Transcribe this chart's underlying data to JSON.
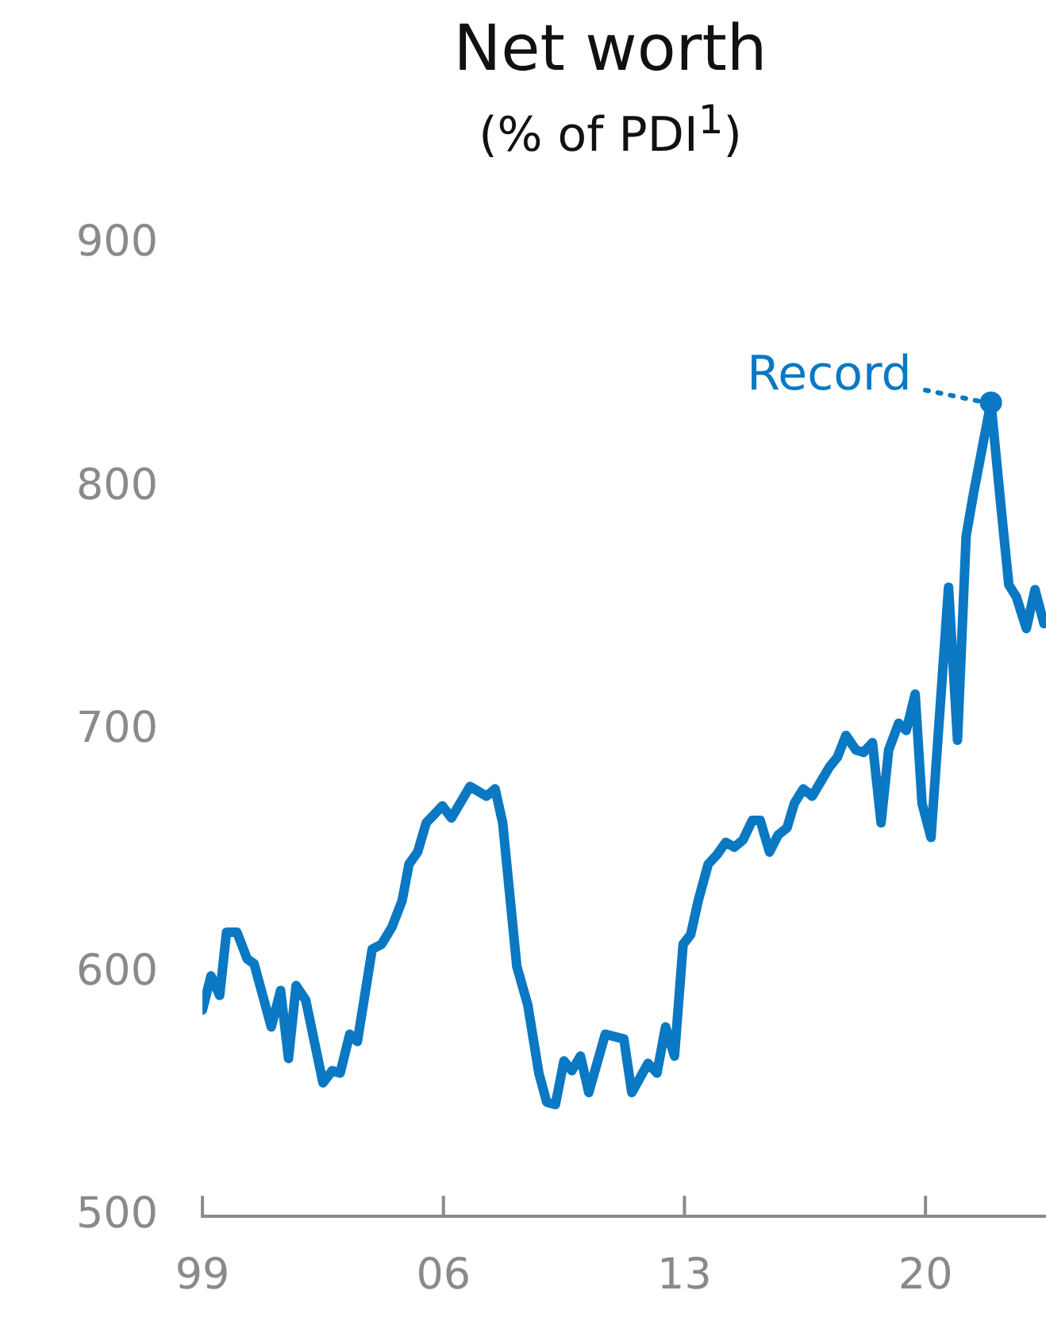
{
  "chart_data": {
    "type": "line",
    "title": "Net worth",
    "subtitle": "(% of PDI$^{1}$)",
    "x": [
      1999.0,
      1999.25,
      1999.5,
      1999.7,
      2000.0,
      2000.3,
      2000.5,
      2001.0,
      2001.27,
      2001.5,
      2001.72,
      2002.0,
      2002.5,
      2002.77,
      2003.0,
      2003.28,
      2003.5,
      2003.93,
      2004.2,
      2004.5,
      2004.8,
      2005.0,
      2005.25,
      2005.5,
      2005.97,
      2006.23,
      2006.77,
      2007.25,
      2007.5,
      2007.72,
      2008.13,
      2008.45,
      2008.77,
      2009.0,
      2009.25,
      2009.5,
      2009.73,
      2009.98,
      2010.22,
      2010.7,
      2011.24,
      2011.47,
      2011.94,
      2012.2,
      2012.45,
      2012.71,
      2012.96,
      2013.18,
      2013.4,
      2013.69,
      2013.95,
      2014.2,
      2014.45,
      2014.7,
      2014.97,
      2015.2,
      2015.47,
      2015.72,
      2015.98,
      2016.19,
      2016.45,
      2016.71,
      2016.96,
      2017.21,
      2017.44,
      2017.69,
      2017.98,
      2018.2,
      2018.46,
      2018.71,
      2018.93,
      2019.22,
      2019.44,
      2019.7,
      2019.9,
      2020.16,
      2020.67,
      2020.93,
      2021.18,
      2021.4,
      2021.9,
      2022.2,
      2022.42,
      2022.64,
      2022.93,
      2023.18,
      2023.44
    ],
    "series": [
      {
        "color": "#0a78c2",
        "values": [
          585,
          599,
          591,
          617,
          617,
          606,
          604,
          578,
          593,
          565,
          595,
          589,
          555,
          560,
          559,
          575,
          572,
          610,
          612,
          619,
          630,
          645,
          650,
          662,
          669,
          664,
          677,
          673,
          676,
          662,
          603,
          587,
          559,
          547,
          546,
          564,
          560,
          566,
          551,
          575,
          573,
          551,
          563,
          559,
          578,
          566,
          612,
          616,
          630,
          645,
          649,
          654,
          652,
          655,
          663,
          663,
          650,
          657,
          660,
          670,
          676,
          673,
          679,
          685,
          689,
          698,
          692,
          691,
          695,
          662,
          692,
          703,
          700,
          715,
          670,
          656,
          759,
          696,
          780,
          798,
          835,
          791,
          760,
          755,
          742,
          758,
          744
        ]
      }
    ],
    "xlim": [
      1999,
      2023.5
    ],
    "xticks": [
      {
        "value": 1999,
        "label": "99"
      },
      {
        "value": 2006,
        "label": "06"
      },
      {
        "value": 2013,
        "label": "13"
      },
      {
        "value": 2020,
        "label": "20"
      }
    ],
    "ylim": [
      500,
      900
    ],
    "yticks": [
      500,
      600,
      700,
      800,
      900
    ],
    "annotations": [
      {
        "text": "Record",
        "x": 2021.9,
        "y": 835
      }
    ]
  }
}
